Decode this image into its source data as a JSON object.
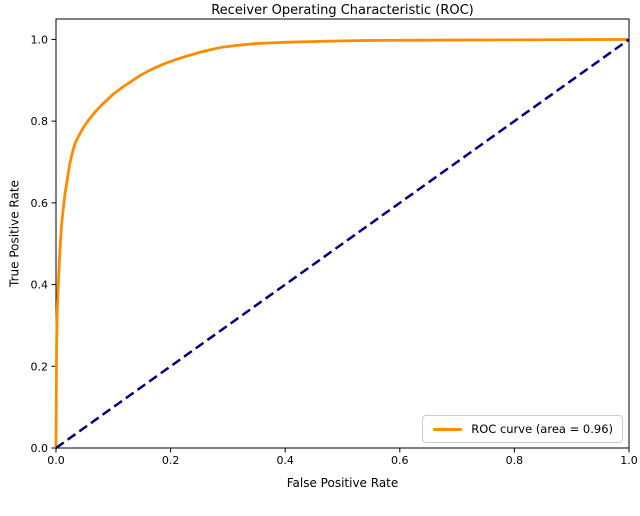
{
  "figure": {
    "title": "Receiver Operating Characteristic (ROC)",
    "xlabel": "False Positive Rate",
    "ylabel": "True Positive Rate",
    "legend": {
      "position": "lower right",
      "entries": [
        {
          "label": "ROC curve (area = 0.96)",
          "color": "#ff8c00",
          "style": "solid"
        }
      ]
    },
    "colors": {
      "roc_curve": "#ff8c00",
      "chance_line": "#000080",
      "spine": "#000000",
      "legend_border": "#cccccc",
      "background": "#ffffff"
    }
  },
  "chart_data": {
    "type": "line",
    "title": "Receiver Operating Characteristic (ROC)",
    "xlabel": "False Positive Rate",
    "ylabel": "True Positive Rate",
    "xlim": [
      0.0,
      1.0
    ],
    "ylim": [
      0.0,
      1.05
    ],
    "xticks": [
      "0.0",
      "0.2",
      "0.4",
      "0.6",
      "0.8",
      "1.0"
    ],
    "yticks": [
      "0.0",
      "0.2",
      "0.4",
      "0.6",
      "0.8",
      "1.0"
    ],
    "grid": false,
    "legend_position": "lower right",
    "auc": 0.96,
    "series": [
      {
        "name": "ROC curve (area = 0.96)",
        "color": "#ff8c00",
        "style": "solid",
        "linewidth": 2.8,
        "points": [
          [
            0.0,
            0.0
          ],
          [
            0.001,
            0.25
          ],
          [
            0.002,
            0.33
          ],
          [
            0.004,
            0.4
          ],
          [
            0.006,
            0.46
          ],
          [
            0.008,
            0.51
          ],
          [
            0.01,
            0.55
          ],
          [
            0.013,
            0.59
          ],
          [
            0.016,
            0.625
          ],
          [
            0.02,
            0.66
          ],
          [
            0.024,
            0.695
          ],
          [
            0.028,
            0.72
          ],
          [
            0.033,
            0.745
          ],
          [
            0.04,
            0.765
          ],
          [
            0.048,
            0.785
          ],
          [
            0.058,
            0.805
          ],
          [
            0.07,
            0.825
          ],
          [
            0.08,
            0.84
          ],
          [
            0.09,
            0.853
          ],
          [
            0.1,
            0.866
          ],
          [
            0.115,
            0.882
          ],
          [
            0.13,
            0.896
          ],
          [
            0.145,
            0.91
          ],
          [
            0.16,
            0.922
          ],
          [
            0.175,
            0.932
          ],
          [
            0.19,
            0.941
          ],
          [
            0.21,
            0.951
          ],
          [
            0.23,
            0.96
          ],
          [
            0.25,
            0.968
          ],
          [
            0.27,
            0.975
          ],
          [
            0.29,
            0.981
          ],
          [
            0.32,
            0.986
          ],
          [
            0.35,
            0.99
          ],
          [
            0.4,
            0.993
          ],
          [
            0.45,
            0.995
          ],
          [
            0.5,
            0.9965
          ],
          [
            0.55,
            0.9975
          ],
          [
            0.6,
            0.998
          ],
          [
            0.7,
            0.9985
          ],
          [
            0.8,
            0.999
          ],
          [
            0.9,
            0.9995
          ],
          [
            1.0,
            1.0
          ]
        ]
      },
      {
        "name": "chance-diagonal",
        "color": "#000080",
        "style": "dashed",
        "linewidth": 2.5,
        "points": [
          [
            0.0,
            0.0
          ],
          [
            1.0,
            1.0
          ]
        ]
      }
    ]
  }
}
